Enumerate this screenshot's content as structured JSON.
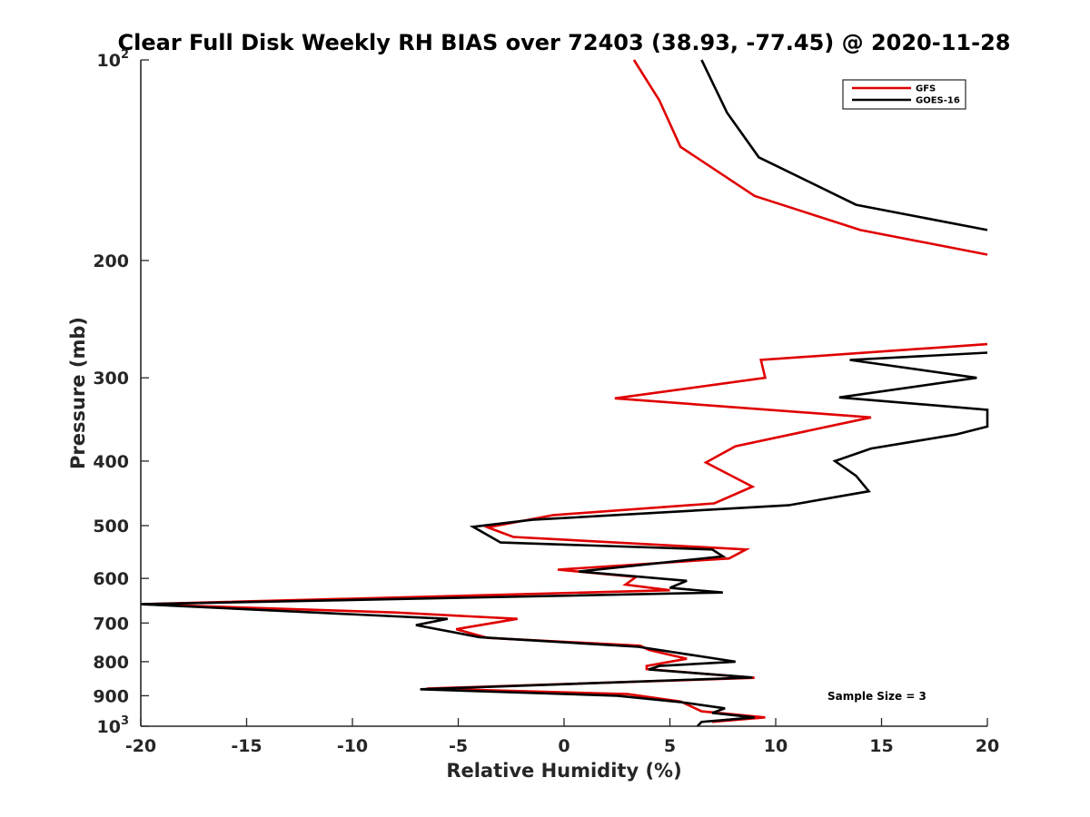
{
  "chart_data": {
    "type": "line",
    "title": "Clear Full Disk Weekly RH BIAS over 72403 (38.93, -77.45) @ 2020-11-28",
    "xlabel": "Relative Humidity (%)",
    "ylabel": "Pressure (mb)",
    "xlim": [
      -20,
      20
    ],
    "ylim": [
      100,
      1000
    ],
    "y_scale": "log",
    "y_reversed": true,
    "x_ticks": [
      "-20",
      "-15",
      "-10",
      "-5",
      "0",
      "5",
      "10",
      "15",
      "20"
    ],
    "y_ticks": [
      {
        "value": 100,
        "base": "10",
        "exp": "2"
      },
      {
        "value": 200,
        "label": "200"
      },
      {
        "value": 300,
        "label": "300"
      },
      {
        "value": 400,
        "label": "400"
      },
      {
        "value": 500,
        "label": "500"
      },
      {
        "value": 600,
        "label": "600"
      },
      {
        "value": 700,
        "label": "700"
      },
      {
        "value": 800,
        "label": "800"
      },
      {
        "value": 900,
        "label": "900"
      },
      {
        "value": 1000,
        "base": "10",
        "exp": "3"
      }
    ],
    "grid": false,
    "legend_position": "top-right",
    "annotation": "Sample Size = 3",
    "series": [
      {
        "name": "GFS",
        "color": "#e00000",
        "points": [
          [
            3.3,
            100
          ],
          [
            4.5,
            115
          ],
          [
            5.5,
            135
          ],
          [
            9.0,
            160
          ],
          [
            14,
            180
          ],
          [
            20,
            196
          ],
          [
            null,
            230
          ],
          [
            20,
            267
          ],
          [
            9.3,
            282
          ],
          [
            9.5,
            300
          ],
          [
            2.4,
            322
          ],
          [
            14.5,
            344
          ],
          [
            8.1,
            380
          ],
          [
            6.7,
            402
          ],
          [
            8.9,
            437
          ],
          [
            7.1,
            463
          ],
          [
            -0.5,
            482
          ],
          [
            -3.6,
            503
          ],
          [
            -2.4,
            520
          ],
          [
            8.6,
            543
          ],
          [
            7.8,
            560
          ],
          [
            -0.3,
            582
          ],
          [
            3.4,
            597
          ],
          [
            2.9,
            613
          ],
          [
            5.0,
            625
          ],
          [
            -20,
            656
          ],
          [
            -8.0,
            675
          ],
          [
            -2.2,
            690
          ],
          [
            -5.1,
            715
          ],
          [
            -3.6,
            737
          ],
          [
            3.6,
            757
          ],
          [
            4.0,
            768
          ],
          [
            5.8,
            792
          ],
          [
            3.9,
            812
          ],
          [
            3.9,
            821
          ],
          [
            9.0,
            846
          ],
          [
            -6.5,
            878
          ],
          [
            3.0,
            895
          ],
          [
            5.5,
            918
          ],
          [
            6.5,
            950
          ],
          [
            9.5,
            970
          ],
          [
            7.0,
            985
          ]
        ]
      },
      {
        "name": "GOES-16",
        "color": "#000000",
        "points": [
          [
            6.5,
            100
          ],
          [
            7.7,
            120
          ],
          [
            9.2,
            140
          ],
          [
            13.8,
            165
          ],
          [
            20,
            180
          ],
          [
            null,
            230
          ],
          [
            20,
            275
          ],
          [
            13.5,
            282
          ],
          [
            19.5,
            300
          ],
          [
            13.0,
            321
          ],
          [
            20,
            335
          ],
          [
            20,
            355
          ],
          [
            18.5,
            365
          ],
          [
            14.5,
            383
          ],
          [
            12.8,
            400
          ],
          [
            13.8,
            421
          ],
          [
            14.4,
            444
          ],
          [
            10.6,
            466
          ],
          [
            -1.5,
            490
          ],
          [
            -4.3,
            502
          ],
          [
            -3.0,
            530
          ],
          [
            7.0,
            543
          ],
          [
            7.5,
            556
          ],
          [
            0.7,
            586
          ],
          [
            5.8,
            605
          ],
          [
            5.0,
            620
          ],
          [
            7.5,
            630
          ],
          [
            -20,
            656
          ],
          [
            -5.5,
            690
          ],
          [
            -7.0,
            705
          ],
          [
            -4.0,
            735
          ],
          [
            3.5,
            760
          ],
          [
            8.1,
            800
          ],
          [
            4.5,
            812
          ],
          [
            4.0,
            822
          ],
          [
            8.9,
            845
          ],
          [
            -6.8,
            880
          ],
          [
            2.5,
            900
          ],
          [
            5.5,
            920
          ],
          [
            7.6,
            940
          ],
          [
            7.0,
            955
          ],
          [
            9.0,
            970
          ],
          [
            6.5,
            985
          ],
          [
            6.3,
            1000
          ]
        ]
      }
    ]
  }
}
